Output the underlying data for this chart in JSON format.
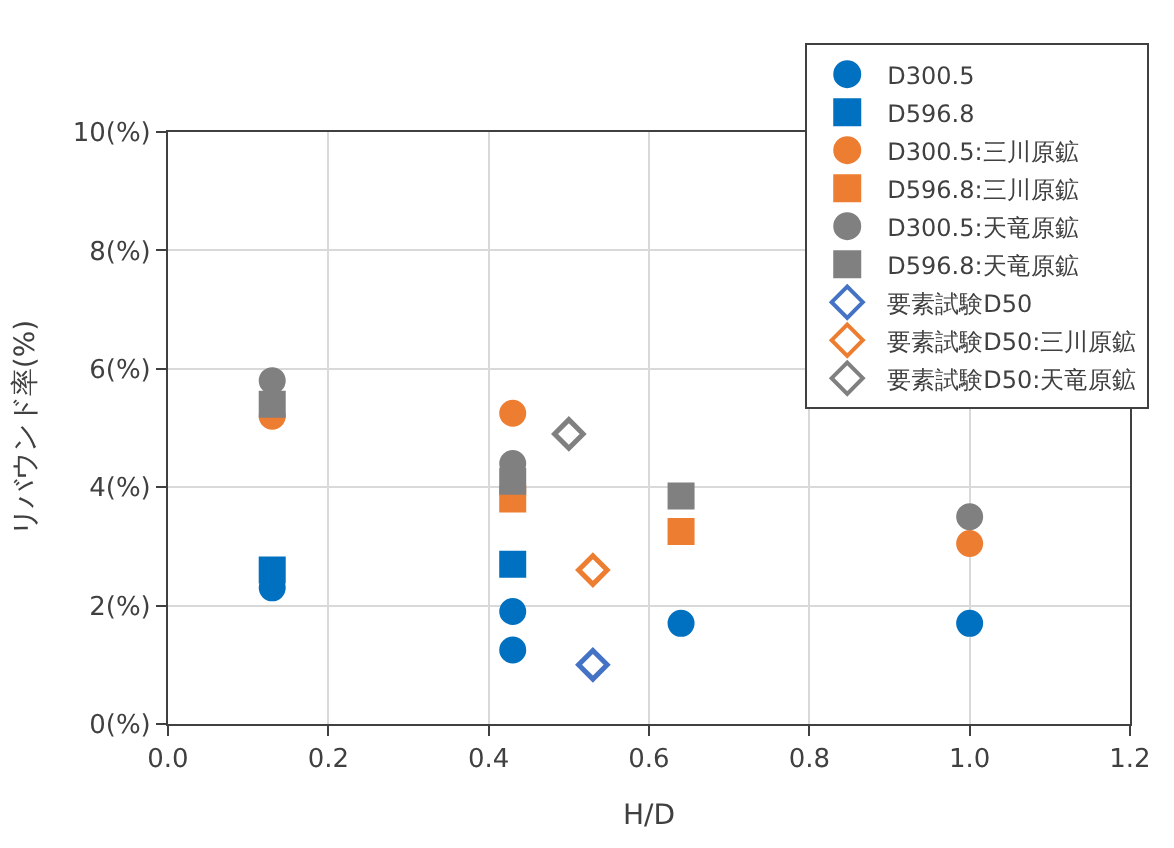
{
  "chart_data": {
    "type": "scatter",
    "xlabel": "H/D",
    "ylabel": "リバウンド率(%)",
    "xlim": [
      0,
      1.2
    ],
    "xticks": [
      {
        "value": 0,
        "label": "0.0"
      },
      0.2,
      0.4,
      0.6,
      0.8,
      {
        "value": 1,
        "label": "1.0"
      },
      1.2
    ],
    "ylim": [
      0,
      10
    ],
    "yticks": [
      {
        "value": 0,
        "label": "0(%)"
      },
      {
        "value": 2,
        "label": "2(%)"
      },
      {
        "value": 4,
        "label": "4(%)"
      },
      {
        "value": 6,
        "label": "6(%)"
      },
      {
        "value": 8,
        "label": "8(%)"
      },
      {
        "value": 10,
        "label": "10(%)"
      }
    ],
    "grid": true,
    "legend": "top right",
    "series": [
      {
        "name": "D300.5",
        "color": "#0070c0",
        "marker": "circle",
        "x": [
          0.13,
          0.43,
          0.43,
          0.64,
          1.0
        ],
        "values": [
          2.3,
          1.9,
          1.25,
          1.7,
          1.7
        ]
      },
      {
        "name": "D596.8",
        "color": "#0070c0",
        "marker": "square",
        "x": [
          0.13,
          0.43
        ],
        "values": [
          2.6,
          2.7
        ]
      },
      {
        "name": "D300.5:三川原鉱",
        "color": "#ed7d31",
        "marker": "circle",
        "x": [
          0.13,
          0.43,
          1.0
        ],
        "values": [
          5.2,
          5.25,
          3.05
        ]
      },
      {
        "name": "D596.8:三川原鉱",
        "color": "#ed7d31",
        "marker": "square",
        "x": [
          0.43,
          0.64
        ],
        "values": [
          3.8,
          3.25
        ]
      },
      {
        "name": "D300.5:天竜原鉱",
        "color": "#808080",
        "marker": "circle",
        "x": [
          0.13,
          0.43,
          1.0
        ],
        "values": [
          5.8,
          4.4,
          3.5
        ]
      },
      {
        "name": "D596.8:天竜原鉱",
        "color": "#808080",
        "marker": "square",
        "x": [
          0.13,
          0.43,
          0.64
        ],
        "values": [
          5.4,
          4.1,
          3.85
        ]
      },
      {
        "name": "要素試験D50",
        "color": "#4472c4",
        "marker": "diamond",
        "x": [
          0.53
        ],
        "values": [
          1.0
        ]
      },
      {
        "name": "要素試験D50:三川原鉱",
        "color": "#ed7d31",
        "marker": "diamond",
        "x": [
          0.53
        ],
        "values": [
          2.6
        ]
      },
      {
        "name": "要素試験D50:天竜原鉱",
        "color": "#808080",
        "marker": "diamond",
        "x": [
          0.5
        ],
        "values": [
          4.9
        ]
      }
    ]
  }
}
